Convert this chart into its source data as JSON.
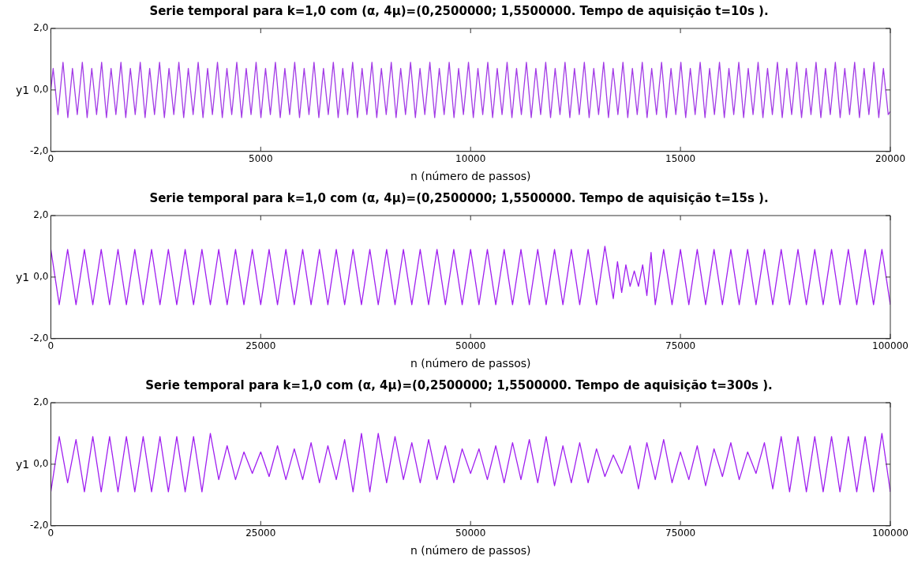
{
  "chart_data": [
    {
      "type": "line",
      "title": "Serie temporal para k=1,0 com (α, 4μ)=(0,2500000; 1,5500000. Tempo de aquisição t=10s ).",
      "xlabel": "n (número de passos)",
      "ylabel": "y1",
      "color": "#a23be6",
      "grid": false,
      "xlim": [
        0,
        20000
      ],
      "xticks": [
        0,
        5000,
        10000,
        15000,
        20000
      ],
      "ylim": [
        -2,
        2
      ],
      "yticks": [
        {
          "value": -2,
          "label": "-2,0"
        },
        {
          "value": 0,
          "label": "0,0"
        },
        {
          "value": 2,
          "label": "2,0"
        }
      ],
      "x": [
        0,
        55,
        170,
        290,
        405,
        515,
        630,
        750,
        865,
        975,
        1090,
        1210,
        1325,
        1435,
        1550,
        1670,
        1785,
        1895,
        2010,
        2130,
        2245,
        2355,
        2470,
        2590,
        2705,
        2815,
        2930,
        3050,
        3165,
        3275,
        3390,
        3510,
        3625,
        3735,
        3850,
        3970,
        4085,
        4195,
        4310,
        4430,
        4545,
        4655,
        4770,
        4890,
        5005,
        5115,
        5230,
        5350,
        5465,
        5575,
        5690,
        5810,
        5925,
        6035,
        6150,
        6270,
        6385,
        6495,
        6610,
        6730,
        6845,
        6955,
        7070,
        7190,
        7305,
        7415,
        7530,
        7650,
        7765,
        7875,
        7990,
        8110,
        8225,
        8335,
        8450,
        8570,
        8685,
        8795,
        8910,
        9030,
        9145,
        9255,
        9370,
        9490,
        9605,
        9715,
        9830,
        9950,
        10065,
        10175,
        10290,
        10410,
        10525,
        10635,
        10750,
        10870,
        10985,
        11095,
        11210,
        11330,
        11445,
        11555,
        11670,
        11790,
        11905,
        12015,
        12130,
        12250,
        12365,
        12475,
        12590,
        12710,
        12825,
        12935,
        13050,
        13170,
        13285,
        13395,
        13510,
        13630,
        13745,
        13855,
        13970,
        14090,
        14205,
        14315,
        14430,
        14550,
        14665,
        14775,
        14890,
        15010,
        15125,
        15235,
        15350,
        15470,
        15585,
        15695,
        15810,
        15930,
        16045,
        16155,
        16270,
        16390,
        16505,
        16615,
        16730,
        16850,
        16965,
        17075,
        17190,
        17310,
        17425,
        17535,
        17650,
        17770,
        17885,
        17995,
        18110,
        18230,
        18345,
        18455,
        18570,
        18690,
        18805,
        18915,
        19030,
        19150,
        19265,
        19375,
        19490,
        19610,
        19725,
        19835,
        19950,
        20000
      ],
      "values": [
        0,
        0.7,
        -0.8,
        0.9,
        -0.9,
        0.7,
        -0.8,
        0.9,
        -0.9,
        0.7,
        -0.8,
        0.9,
        -0.9,
        0.7,
        -0.8,
        0.9,
        -0.9,
        0.7,
        -0.8,
        0.9,
        -0.9,
        0.7,
        -0.8,
        0.9,
        -0.9,
        0.7,
        -0.8,
        0.9,
        -0.9,
        0.7,
        -0.8,
        0.9,
        -0.9,
        0.7,
        -0.8,
        0.9,
        -0.9,
        0.7,
        -0.8,
        0.9,
        -0.9,
        0.7,
        -0.8,
        0.9,
        -0.9,
        0.7,
        -0.8,
        0.9,
        -0.9,
        0.7,
        -0.8,
        0.9,
        -0.9,
        0.7,
        -0.8,
        0.9,
        -0.9,
        0.7,
        -0.8,
        0.9,
        -0.9,
        0.7,
        -0.8,
        0.9,
        -0.9,
        0.7,
        -0.8,
        0.9,
        -0.9,
        0.7,
        -0.8,
        0.9,
        -0.9,
        0.7,
        -0.8,
        0.9,
        -0.9,
        0.7,
        -0.8,
        0.9,
        -0.9,
        0.7,
        -0.8,
        0.9,
        -0.9,
        0.7,
        -0.8,
        0.9,
        -0.9,
        0.7,
        -0.8,
        0.9,
        -0.9,
        0.7,
        -0.8,
        0.9,
        -0.9,
        0.7,
        -0.8,
        0.9,
        -0.9,
        0.7,
        -0.8,
        0.9,
        -0.9,
        0.7,
        -0.8,
        0.9,
        -0.9,
        0.7,
        -0.8,
        0.9,
        -0.9,
        0.7,
        -0.8,
        0.9,
        -0.9,
        0.7,
        -0.8,
        0.9,
        -0.9,
        0.7,
        -0.8,
        0.9,
        -0.9,
        0.7,
        -0.8,
        0.9,
        -0.9,
        0.7,
        -0.8,
        0.9,
        -0.9,
        0.7,
        -0.8,
        0.9,
        -0.9,
        0.7,
        -0.8,
        0.9,
        -0.9,
        0.7,
        -0.8,
        0.9,
        -0.9,
        0.7,
        -0.8,
        0.9,
        -0.9,
        0.7,
        -0.8,
        0.9,
        -0.9,
        0.7,
        -0.8,
        0.9,
        -0.9,
        0.7,
        -0.8,
        0.9,
        -0.9,
        0.7,
        -0.8,
        0.9,
        -0.9,
        0.7,
        -0.8,
        0.9,
        -0.9,
        0.7,
        -0.8,
        0.9,
        -0.9,
        0.7,
        -0.8,
        -0.7
      ]
    },
    {
      "type": "line",
      "title": "Serie temporal para k=1,0 com (α, 4μ)=(0,2500000; 1,5500000. Tempo de aquisição t=15s ).",
      "xlabel": "n (número de passos)",
      "ylabel": "y1",
      "color": "#a020f0",
      "grid": false,
      "xlim": [
        0,
        100000
      ],
      "xticks": [
        0,
        25000,
        50000,
        75000,
        100000
      ],
      "ylim": [
        -2,
        2
      ],
      "yticks": [
        {
          "value": -2,
          "label": "-2,0"
        },
        {
          "value": 0,
          "label": "0,0"
        },
        {
          "value": 2,
          "label": "2,0"
        }
      ],
      "x": [
        0,
        1000,
        2000,
        3000,
        4000,
        5000,
        6000,
        7000,
        8000,
        9000,
        10000,
        11000,
        12000,
        13000,
        14000,
        15000,
        16000,
        17000,
        18000,
        19000,
        20000,
        21000,
        22000,
        23000,
        24000,
        25000,
        26000,
        27000,
        28000,
        29000,
        30000,
        31000,
        32000,
        33000,
        34000,
        35000,
        36000,
        37000,
        38000,
        39000,
        40000,
        41000,
        42000,
        43000,
        44000,
        45000,
        46000,
        47000,
        48000,
        49000,
        50000,
        51000,
        52000,
        53000,
        54000,
        55000,
        56000,
        57000,
        58000,
        59000,
        60000,
        61000,
        62000,
        63000,
        64000,
        65000,
        66000,
        67000,
        67500,
        68000,
        68500,
        69000,
        69500,
        70000,
        70500,
        71000,
        71500,
        72000,
        73000,
        74000,
        75000,
        76000,
        77000,
        78000,
        79000,
        80000,
        81000,
        82000,
        83000,
        84000,
        85000,
        86000,
        87000,
        88000,
        89000,
        90000,
        91000,
        92000,
        93000,
        94000,
        95000,
        96000,
        97000,
        98000,
        99000,
        100000
      ],
      "values": [
        0.9,
        -0.9,
        0.9,
        -0.9,
        0.9,
        -0.9,
        0.9,
        -0.9,
        0.9,
        -0.9,
        0.9,
        -0.9,
        0.9,
        -0.9,
        0.9,
        -0.9,
        0.9,
        -0.9,
        0.9,
        -0.9,
        0.9,
        -0.9,
        0.9,
        -0.9,
        0.9,
        -0.9,
        0.9,
        -0.9,
        0.9,
        -0.9,
        0.9,
        -0.9,
        0.9,
        -0.9,
        0.9,
        -0.9,
        0.9,
        -0.9,
        0.9,
        -0.9,
        0.9,
        -0.9,
        0.9,
        -0.9,
        0.9,
        -0.9,
        0.9,
        -0.9,
        0.9,
        -0.9,
        0.9,
        -0.9,
        0.9,
        -0.9,
        0.9,
        -0.9,
        0.9,
        -0.9,
        0.9,
        -0.9,
        0.9,
        -0.9,
        0.9,
        -0.9,
        0.9,
        -0.9,
        1.0,
        -0.7,
        0.5,
        -0.5,
        0.4,
        -0.3,
        0.2,
        -0.3,
        0.4,
        -0.6,
        0.8,
        -0.9,
        0.9,
        -0.9,
        0.9,
        -0.9,
        0.9,
        -0.9,
        0.9,
        -0.9,
        0.9,
        -0.9,
        0.9,
        -0.9,
        0.9,
        -0.9,
        0.9,
        -0.9,
        0.9,
        -0.9,
        0.9,
        -0.9,
        0.9,
        -0.9,
        0.9,
        -0.9,
        0.9,
        -0.9,
        0.9,
        -0.9
      ]
    },
    {
      "type": "line",
      "title": "Serie temporal para k=1,0 com (α, 4μ)=(0,2500000; 1,5500000. Tempo de aquisição t=300s ).",
      "xlabel": "n (número de passos)",
      "ylabel": "y1",
      "color": "#a020f0",
      "grid": false,
      "xlim": [
        0,
        100000
      ],
      "xticks": [
        0,
        25000,
        50000,
        75000,
        100000
      ],
      "ylim": [
        -2,
        2
      ],
      "yticks": [
        {
          "value": -2,
          "label": "-2,0"
        },
        {
          "value": 0,
          "label": "0,0"
        },
        {
          "value": 2,
          "label": "2,0"
        }
      ],
      "x": [
        0,
        1000,
        2000,
        3000,
        4000,
        5000,
        6000,
        7000,
        8000,
        9000,
        10000,
        11000,
        12000,
        13000,
        14000,
        15000,
        16000,
        17000,
        18000,
        19000,
        20000,
        21000,
        22000,
        23000,
        24000,
        25000,
        26000,
        27000,
        28000,
        29000,
        30000,
        31000,
        32000,
        33000,
        34000,
        35000,
        36000,
        37000,
        38000,
        39000,
        40000,
        41000,
        42000,
        43000,
        44000,
        45000,
        46000,
        47000,
        48000,
        49000,
        50000,
        51000,
        52000,
        53000,
        54000,
        55000,
        56000,
        57000,
        58000,
        59000,
        60000,
        61000,
        62000,
        63000,
        64000,
        65000,
        66000,
        67000,
        68000,
        69000,
        70000,
        71000,
        72000,
        73000,
        74000,
        75000,
        76000,
        77000,
        78000,
        79000,
        80000,
        81000,
        82000,
        83000,
        84000,
        85000,
        86000,
        87000,
        88000,
        89000,
        90000,
        91000,
        92000,
        93000,
        94000,
        95000,
        96000,
        97000,
        98000,
        99000,
        100000
      ],
      "values": [
        -0.9,
        0.9,
        -0.6,
        0.8,
        -0.9,
        0.9,
        -0.9,
        0.9,
        -0.9,
        0.9,
        -0.9,
        0.9,
        -0.9,
        0.9,
        -0.9,
        0.9,
        -0.9,
        0.9,
        -0.9,
        1.0,
        -0.5,
        0.6,
        -0.5,
        0.4,
        -0.3,
        0.4,
        -0.4,
        0.6,
        -0.5,
        0.5,
        -0.5,
        0.7,
        -0.6,
        0.6,
        -0.5,
        0.8,
        -0.9,
        1.0,
        -0.9,
        1.0,
        -0.6,
        0.9,
        -0.5,
        0.7,
        -0.6,
        0.8,
        -0.5,
        0.6,
        -0.6,
        0.5,
        -0.3,
        0.5,
        -0.5,
        0.6,
        -0.6,
        0.7,
        -0.5,
        0.8,
        -0.6,
        0.9,
        -0.7,
        0.6,
        -0.6,
        0.7,
        -0.6,
        0.5,
        -0.4,
        0.3,
        -0.3,
        0.6,
        -0.8,
        0.7,
        -0.5,
        0.8,
        -0.6,
        0.4,
        -0.5,
        0.6,
        -0.7,
        0.5,
        -0.4,
        0.7,
        -0.5,
        0.4,
        -0.3,
        0.7,
        -0.8,
        0.9,
        -0.9,
        0.9,
        -0.9,
        0.9,
        -0.9,
        0.9,
        -0.9,
        0.9,
        -0.9,
        0.9,
        -0.9,
        1.0,
        -0.9
      ]
    }
  ]
}
